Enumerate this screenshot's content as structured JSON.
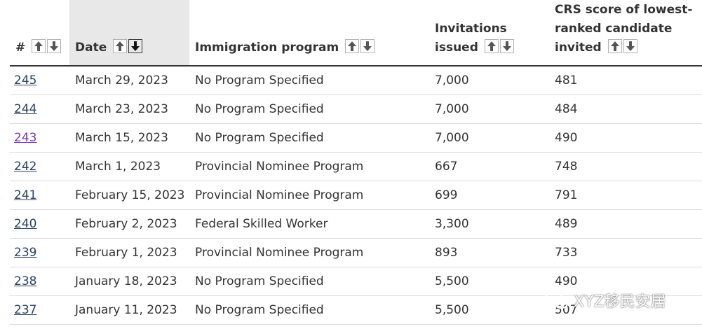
{
  "table": {
    "headers": {
      "num": "#",
      "date": "Date",
      "program": "Immigration program",
      "invitations_line1": "Invitations",
      "invitations_line2": "issued",
      "crs_line1": "CRS score of lowest-",
      "crs_line2": "ranked candidate",
      "crs_line3": "invited"
    },
    "rows": [
      {
        "num": "245",
        "date": "March 29, 2023",
        "program": "No Program Specified",
        "invitations": "7,000",
        "crs": "481"
      },
      {
        "num": "244",
        "date": "March 23, 2023",
        "program": "No Program Specified",
        "invitations": "7,000",
        "crs": "484"
      },
      {
        "num": "243",
        "date": "March 15, 2023",
        "program": "No Program Specified",
        "invitations": "7,000",
        "crs": "490"
      },
      {
        "num": "242",
        "date": "March 1, 2023",
        "program": "Provincial Nominee Program",
        "invitations": "667",
        "crs": "748"
      },
      {
        "num": "241",
        "date": "February 15, 2023",
        "program": "Provincial Nominee Program",
        "invitations": "699",
        "crs": "791"
      },
      {
        "num": "240",
        "date": "February 2, 2023",
        "program": "Federal Skilled Worker",
        "invitations": "3,300",
        "crs": "489"
      },
      {
        "num": "239",
        "date": "February 1, 2023",
        "program": "Provincial Nominee Program",
        "invitations": "893",
        "crs": "733"
      },
      {
        "num": "238",
        "date": "January 18, 2023",
        "program": "No Program Specified",
        "invitations": "5,500",
        "crs": "490"
      },
      {
        "num": "237",
        "date": "January 11, 2023",
        "program": "No Program Specified",
        "invitations": "5,500",
        "crs": "507"
      }
    ],
    "sorted_column": "date",
    "sort_direction": "descending",
    "visited_row": "243"
  },
  "watermark": {
    "text": "XYZ移民安居",
    "icon": "wechat-icon"
  },
  "colors": {
    "link": "#284162",
    "link_visited": "#7834bc",
    "sorted_header_bg": "#e8e8e8",
    "text": "#333333",
    "row_divider": "#dddddd"
  }
}
